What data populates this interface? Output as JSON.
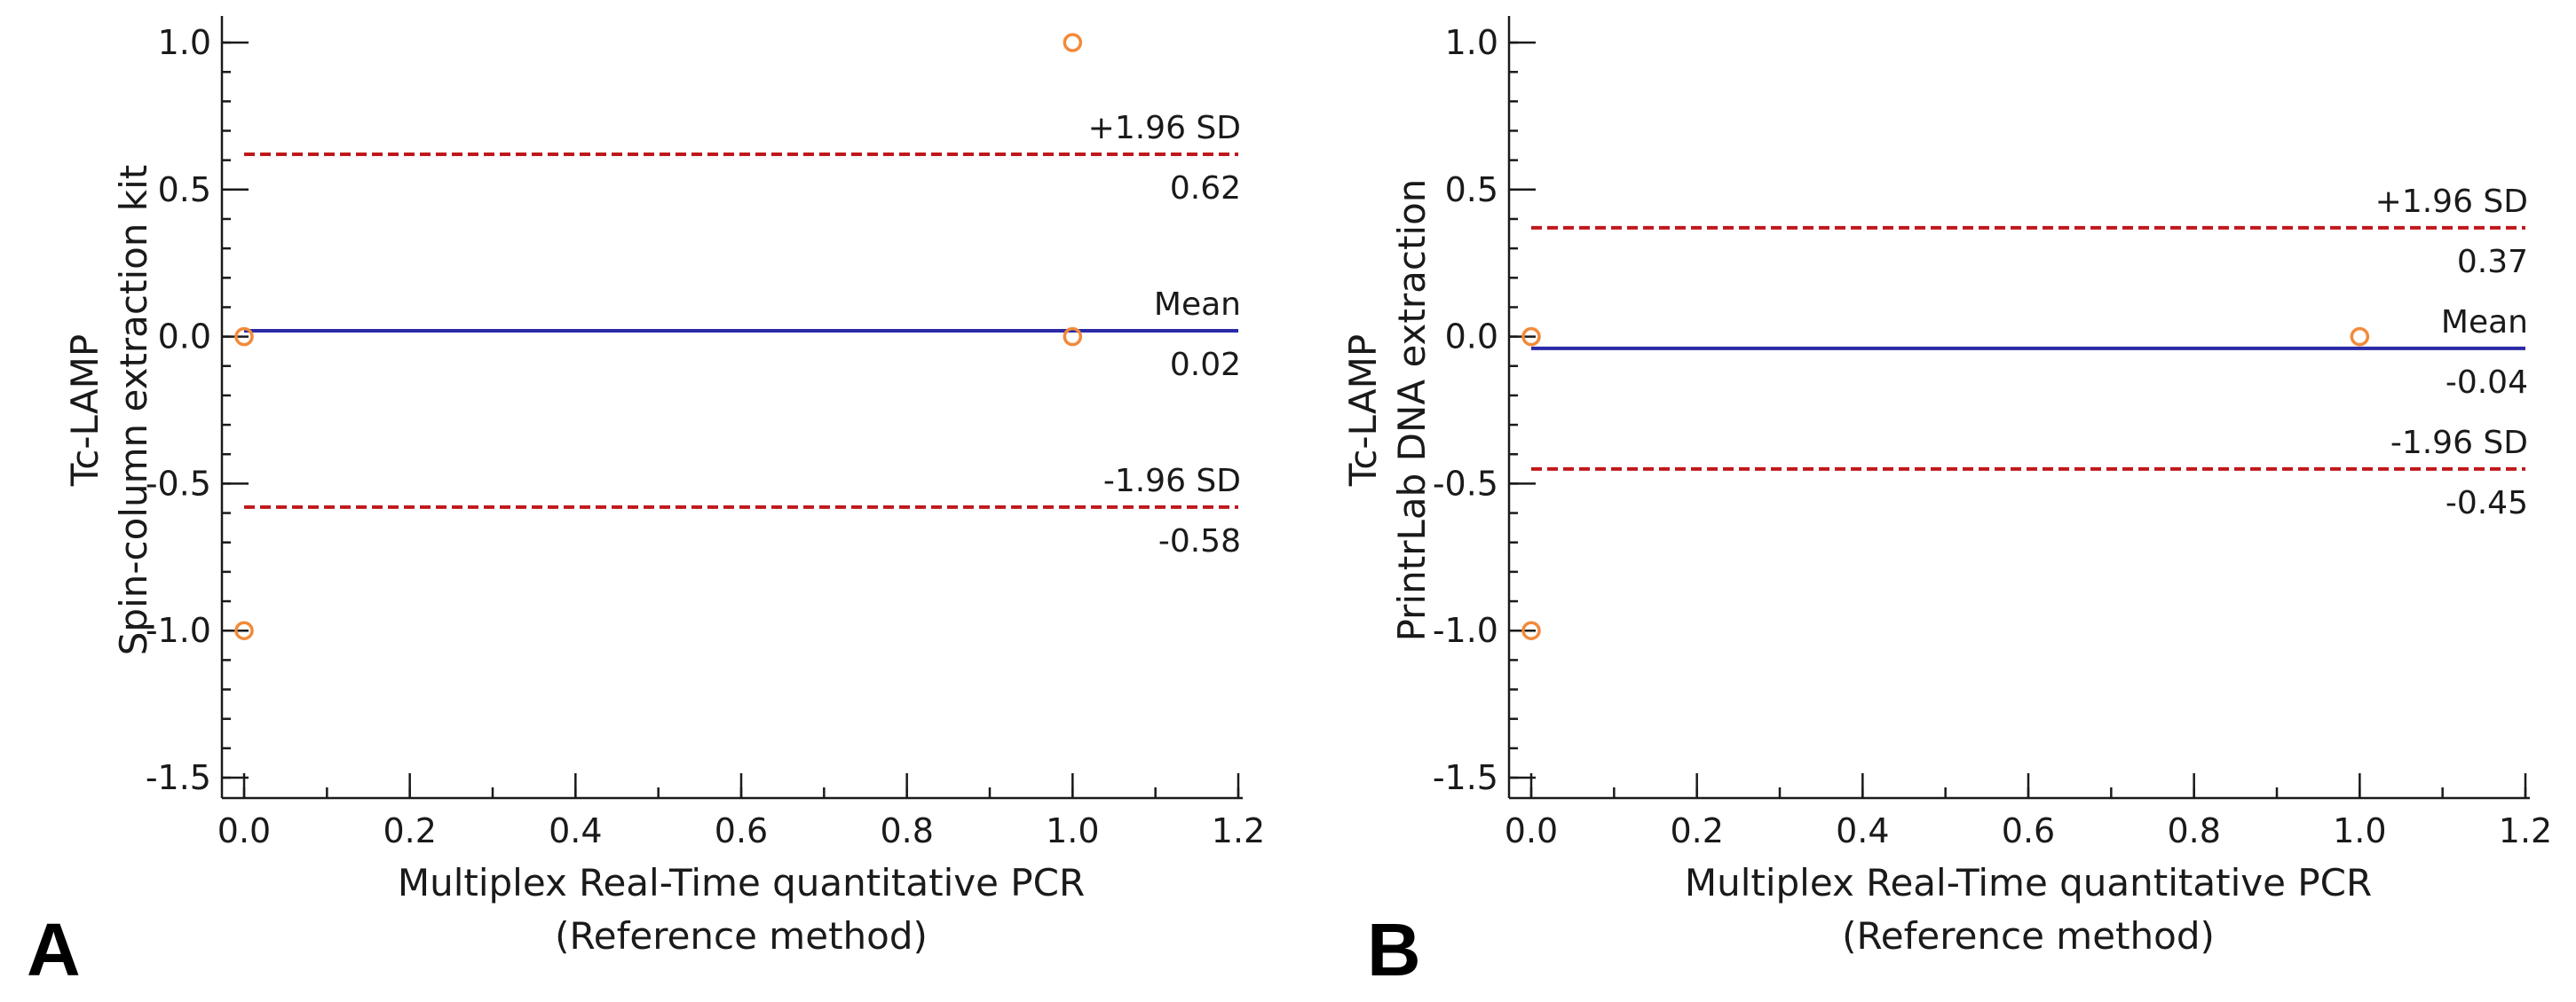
{
  "chart_data": [
    {
      "type": "scatter",
      "panel_label": "A",
      "title": "",
      "ylabel_line1": "Tc-LAMP",
      "ylabel_line2": "Spin-column extraction kit",
      "xlabel_line1": "Multiplex Real-Time quantitative PCR",
      "xlabel_line2": "(Reference method)",
      "xlim": [
        0,
        1.2
      ],
      "ylim": [
        -1.5,
        1.0
      ],
      "x_ticks": [
        "0.0",
        "0.2",
        "0.4",
        "0.6",
        "0.8",
        "1.0",
        "1.2"
      ],
      "y_ticks": [
        "1.0",
        "0.5",
        "0.0",
        "-0.5",
        "-1.0",
        "-1.5"
      ],
      "points": [
        {
          "x": 0,
          "y": 0
        },
        {
          "x": 0,
          "y": -1
        },
        {
          "x": 1,
          "y": 1
        },
        {
          "x": 1,
          "y": 0
        }
      ],
      "mean": {
        "label": "Mean",
        "value": 0.02,
        "value_text": "0.02"
      },
      "upper_loa": {
        "label": "+1.96 SD",
        "value": 0.62,
        "value_text": "0.62"
      },
      "lower_loa": {
        "label": "-1.96 SD",
        "value": -0.58,
        "value_text": "-0.58"
      }
    },
    {
      "type": "scatter",
      "panel_label": "B",
      "title": "",
      "ylabel_line1": "Tc-LAMP",
      "ylabel_line2": "PrintrLab DNA extraction",
      "xlabel_line1": "Multiplex Real-Time quantitative PCR",
      "xlabel_line2": "(Reference method)",
      "xlim": [
        0,
        1.2
      ],
      "ylim": [
        -1.5,
        1.0
      ],
      "x_ticks": [
        "0.0",
        "0.2",
        "0.4",
        "0.6",
        "0.8",
        "1.0",
        "1.2"
      ],
      "y_ticks": [
        "1.0",
        "0.5",
        "0.0",
        "-0.5",
        "-1.0",
        "-1.5"
      ],
      "points": [
        {
          "x": 0,
          "y": 0
        },
        {
          "x": 0,
          "y": -1
        },
        {
          "x": 1,
          "y": 0
        }
      ],
      "mean": {
        "label": "Mean",
        "value": -0.04,
        "value_text": "-0.04"
      },
      "upper_loa": {
        "label": "+1.96 SD",
        "value": 0.37,
        "value_text": "0.37"
      },
      "lower_loa": {
        "label": "-1.96 SD",
        "value": -0.45,
        "value_text": "-0.45"
      }
    }
  ]
}
